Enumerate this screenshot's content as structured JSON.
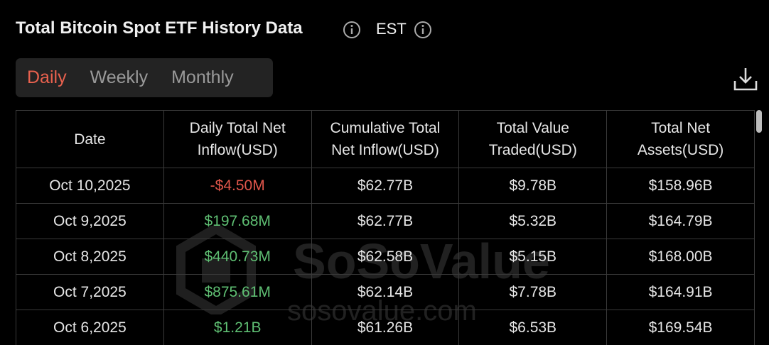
{
  "header": {
    "title": "Total Bitcoin Spot ETF History Data",
    "timezone": "EST"
  },
  "tabs": {
    "items": [
      "Daily",
      "Weekly",
      "Monthly"
    ],
    "active": 0
  },
  "table": {
    "columns": [
      "Date",
      "Daily Total Net Inflow(USD)",
      "Cumulative Total Net Inflow(USD)",
      "Total Value Traded(USD)",
      "Total Net Assets(USD)"
    ],
    "rows": [
      [
        "Oct 10,2025",
        "-$4.50M",
        "$62.77B",
        "$9.78B",
        "$158.96B"
      ],
      [
        "Oct 9,2025",
        "$197.68M",
        "$62.77B",
        "$5.32B",
        "$164.79B"
      ],
      [
        "Oct 8,2025",
        "$440.73M",
        "$62.58B",
        "$5.15B",
        "$168.00B"
      ],
      [
        "Oct 7,2025",
        "$875.61M",
        "$62.14B",
        "$7.78B",
        "$164.91B"
      ],
      [
        "Oct 6,2025",
        "$1.21B",
        "$61.26B",
        "$6.53B",
        "$169.54B"
      ]
    ]
  },
  "watermark": {
    "brand": "SoSoValue",
    "url": "sosovalue.com"
  }
}
